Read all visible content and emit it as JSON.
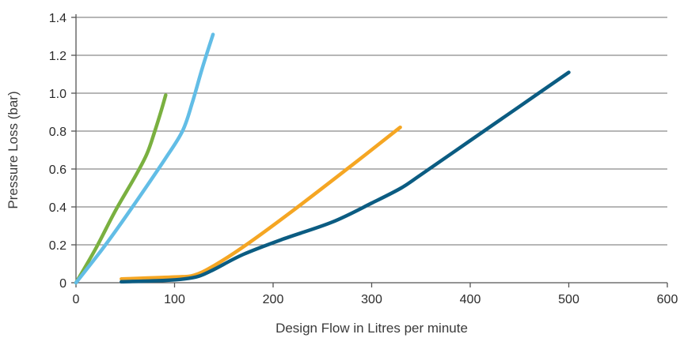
{
  "chart_data": {
    "type": "line",
    "title": "",
    "xlabel": "Design Flow in Litres per minute",
    "ylabel": "Pressure Loss (bar)",
    "xlim": [
      0,
      600
    ],
    "ylim": [
      0,
      1.4
    ],
    "x_ticks": [
      0,
      100,
      200,
      300,
      400,
      500,
      600
    ],
    "x_tick_labels": [
      "0",
      "100",
      "200",
      "300",
      "400",
      "500",
      "600"
    ],
    "y_ticks": [
      0,
      0.2,
      0.4,
      0.6,
      0.8,
      1.0,
      1.2,
      1.4
    ],
    "y_tick_labels": [
      "0",
      "0.2",
      "0.4",
      "0.6",
      "0.8",
      "1.0",
      "1.2",
      "1.4"
    ],
    "grid": true,
    "legend": "none",
    "series": [
      {
        "color": "#7ab040",
        "points": [
          [
            0,
            0
          ],
          [
            20,
            0.18
          ],
          [
            40,
            0.38
          ],
          [
            60,
            0.56
          ],
          [
            72,
            0.68
          ],
          [
            80,
            0.8
          ],
          [
            86,
            0.9
          ],
          [
            91,
            0.99
          ]
        ]
      },
      {
        "color": "#62bde6",
        "points": [
          [
            0,
            0
          ],
          [
            30,
            0.2
          ],
          [
            60,
            0.42
          ],
          [
            90,
            0.65
          ],
          [
            108,
            0.8
          ],
          [
            118,
            0.95
          ],
          [
            128,
            1.13
          ],
          [
            139,
            1.31
          ]
        ]
      },
      {
        "color": "#f5a623",
        "points": [
          [
            46,
            0.02
          ],
          [
            100,
            0.03
          ],
          [
            120,
            0.04
          ],
          [
            140,
            0.09
          ],
          [
            170,
            0.19
          ],
          [
            220,
            0.38
          ],
          [
            280,
            0.62
          ],
          [
            329,
            0.82
          ]
        ]
      },
      {
        "color": "#0b5c82",
        "points": [
          [
            46,
            0.005
          ],
          [
            90,
            0.012
          ],
          [
            110,
            0.02
          ],
          [
            125,
            0.035
          ],
          [
            140,
            0.07
          ],
          [
            170,
            0.15
          ],
          [
            210,
            0.23
          ],
          [
            260,
            0.32
          ],
          [
            300,
            0.42
          ],
          [
            330,
            0.5
          ],
          [
            350,
            0.57
          ],
          [
            400,
            0.75
          ],
          [
            450,
            0.93
          ],
          [
            500,
            1.11
          ]
        ]
      }
    ]
  }
}
